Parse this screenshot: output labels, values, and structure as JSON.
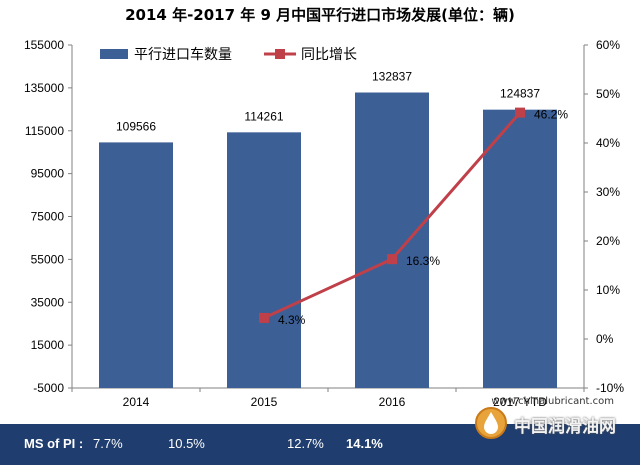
{
  "chart_data": {
    "type": "bar",
    "title": "2014 年-2017 年 9 月中国平行进口市场发展(单位：辆)",
    "categories": [
      "2014",
      "2015",
      "2016",
      "2017 YTD"
    ],
    "series": [
      {
        "name": "平行进口车数量",
        "type": "bar",
        "axis": "left",
        "values": [
          109566,
          114261,
          132837,
          124837
        ],
        "labels": [
          "109566",
          "114261",
          "132837",
          "124837"
        ],
        "color": "#3c5f95"
      },
      {
        "name": "同比增长",
        "type": "line",
        "axis": "right",
        "values": [
          null,
          4.3,
          16.3,
          46.2
        ],
        "labels": [
          "",
          "4.3%",
          "16.3%",
          "46.2%"
        ],
        "color": "#c0404a"
      }
    ],
    "y_left": {
      "min": -5000,
      "max": 155000,
      "ticks": [
        "-5000",
        "15000",
        "35000",
        "55000",
        "75000",
        "95000",
        "115000",
        "135000",
        "155000"
      ]
    },
    "y_right": {
      "min": -10,
      "max": 60,
      "ticks": [
        "-10%",
        "0%",
        "10%",
        "20%",
        "30%",
        "40%",
        "50%",
        "60%"
      ]
    },
    "grid": false,
    "legend_position": "top-left"
  },
  "ms_bar": {
    "label": "MS of PI :",
    "values": [
      "7.7%",
      "10.5%",
      "12.7%",
      "14.1%"
    ]
  },
  "watermark": {
    "url": "www.chinalubricant.com",
    "name": "中国润滑油网"
  }
}
